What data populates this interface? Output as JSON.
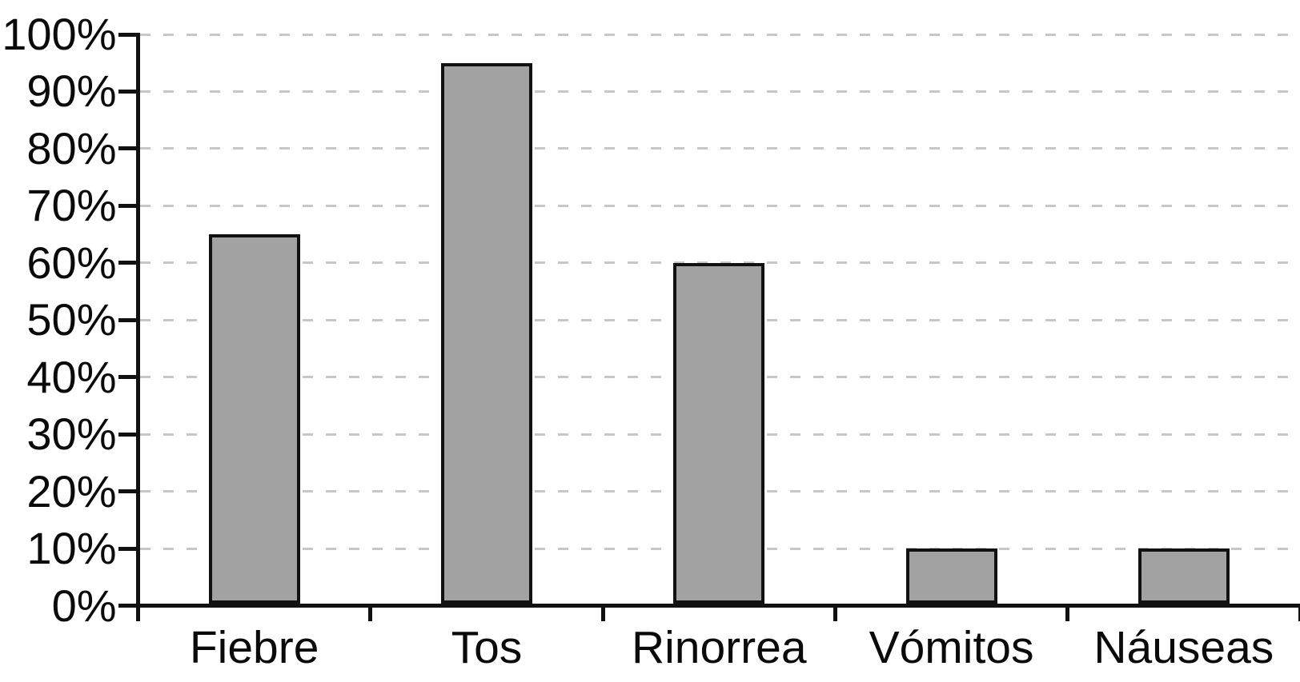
{
  "chart_data": {
    "type": "bar",
    "title": "",
    "xlabel": "",
    "ylabel": "",
    "categories": [
      "Fiebre",
      "Tos",
      "Rinorrea",
      "Vómitos",
      "Náuseas"
    ],
    "values": [
      65,
      95,
      60,
      10,
      10
    ],
    "value_unit": "percent",
    "ylim": [
      0,
      100
    ],
    "y_tick_step": 10,
    "y_tick_labels": [
      "0%",
      "10%",
      "20%",
      "30%",
      "40%",
      "50%",
      "60%",
      "70%",
      "80%",
      "90%",
      "100%"
    ],
    "grid": "horizontal, dashed, behind bars",
    "legend_position": "none",
    "colors": {
      "bar_fill": "#a2a2a2",
      "bar_border": "#111111",
      "axis": "#111111",
      "gridline": "#c7c7c7",
      "text": "#0a0a0a",
      "background": "#ffffff"
    }
  }
}
